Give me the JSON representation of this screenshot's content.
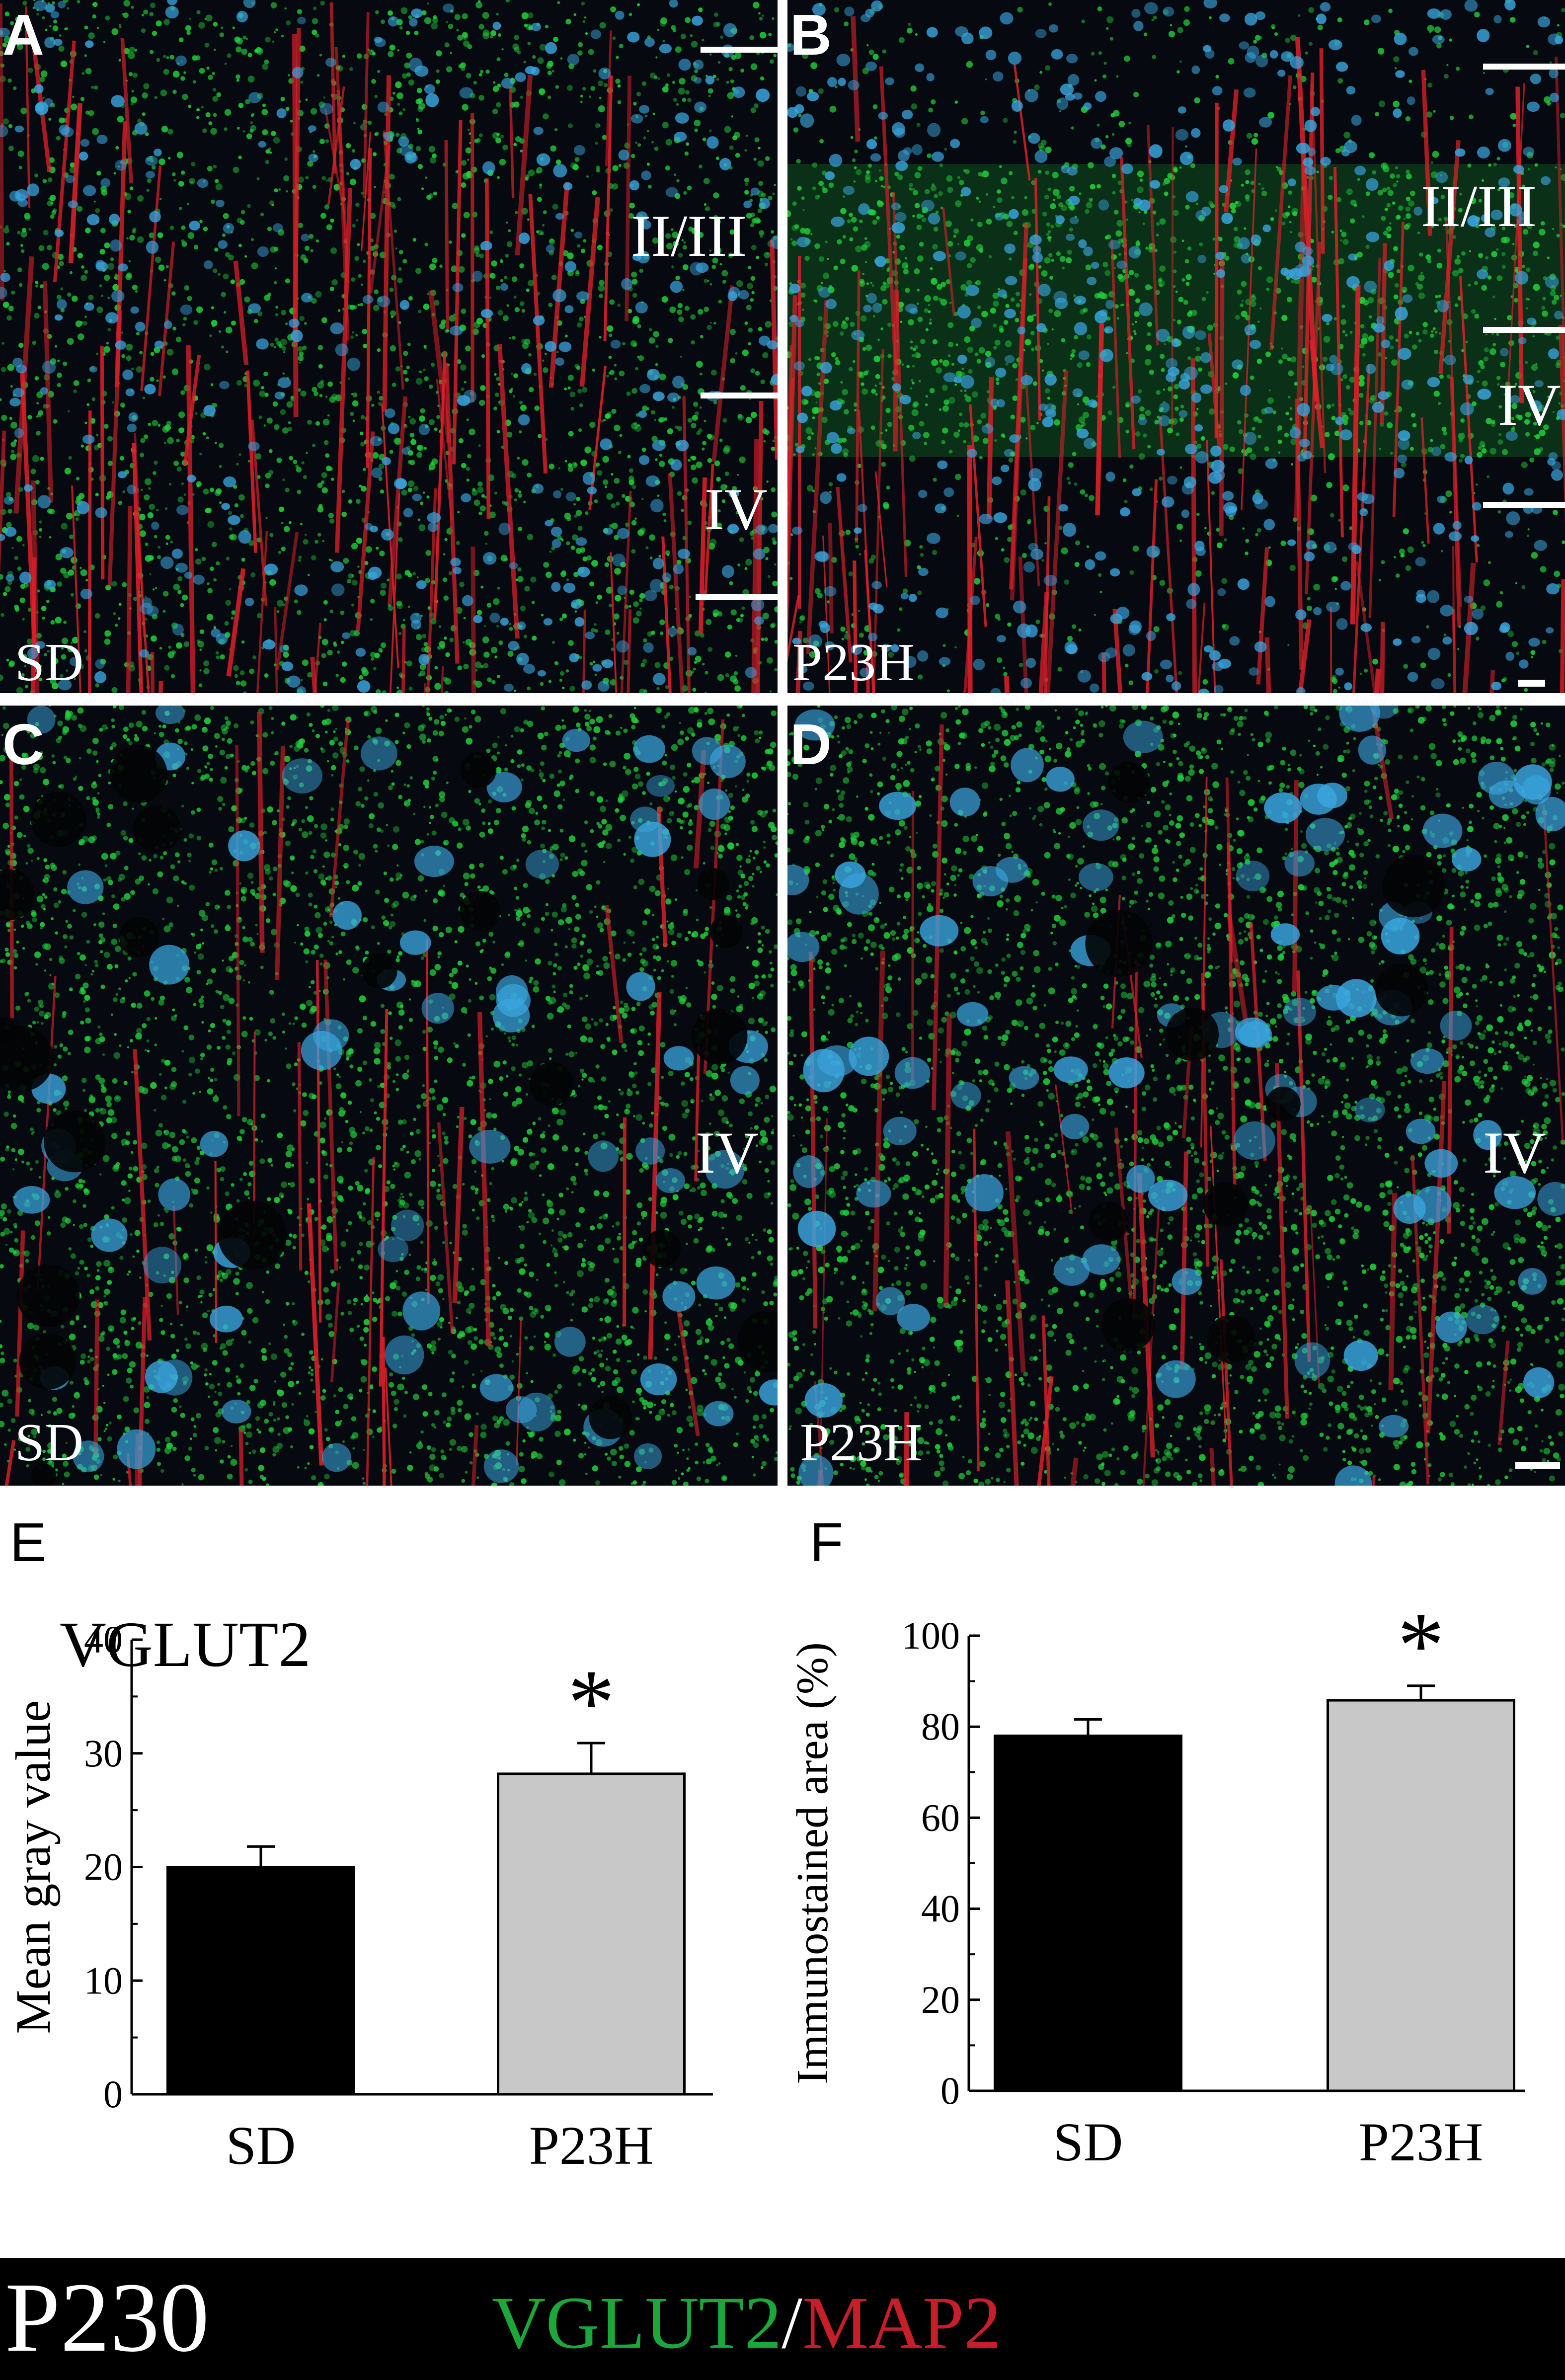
{
  "panels": [
    {
      "letter": "A",
      "group": "SD",
      "layers": [
        "II/III",
        "IV"
      ]
    },
    {
      "letter": "B",
      "group": "P23H",
      "layers": [
        "II/III",
        "IV"
      ]
    },
    {
      "letter": "C",
      "group": "SD",
      "layers": [
        "IV"
      ]
    },
    {
      "letter": "D",
      "group": "P23H",
      "layers": [
        "IV"
      ]
    }
  ],
  "colors": {
    "vglut2": "#1fd23a",
    "map2": "#e0202a",
    "nuclei": "#3aa6e0",
    "sd_bar": "#000000",
    "p23h_bar": "#c8c8c8"
  },
  "chart_data": [
    {
      "panel": "E",
      "type": "bar",
      "title": "VGLUT2",
      "xlabel": "",
      "ylabel": "Mean gray value",
      "categories": [
        "SD",
        "P23H"
      ],
      "values": [
        20,
        28.2
      ],
      "errors": [
        1.8,
        2.7
      ],
      "significance": [
        "",
        "*"
      ],
      "ylim": [
        0,
        40
      ],
      "yticks": [
        0,
        10,
        20,
        30,
        40
      ],
      "grid": false
    },
    {
      "panel": "F",
      "type": "bar",
      "title": "",
      "xlabel": "",
      "ylabel": "Immunostained area (%)",
      "categories": [
        "SD",
        "P23H"
      ],
      "values": [
        78,
        85.8
      ],
      "errors": [
        3.6,
        3.2
      ],
      "significance": [
        "",
        "*"
      ],
      "ylim": [
        0,
        100
      ],
      "yticks": [
        0,
        20,
        40,
        60,
        80,
        100
      ],
      "grid": false
    }
  ],
  "footer": {
    "age": "P230",
    "marker1": "VGLUT2",
    "separator": "/",
    "marker2": "MAP2"
  }
}
